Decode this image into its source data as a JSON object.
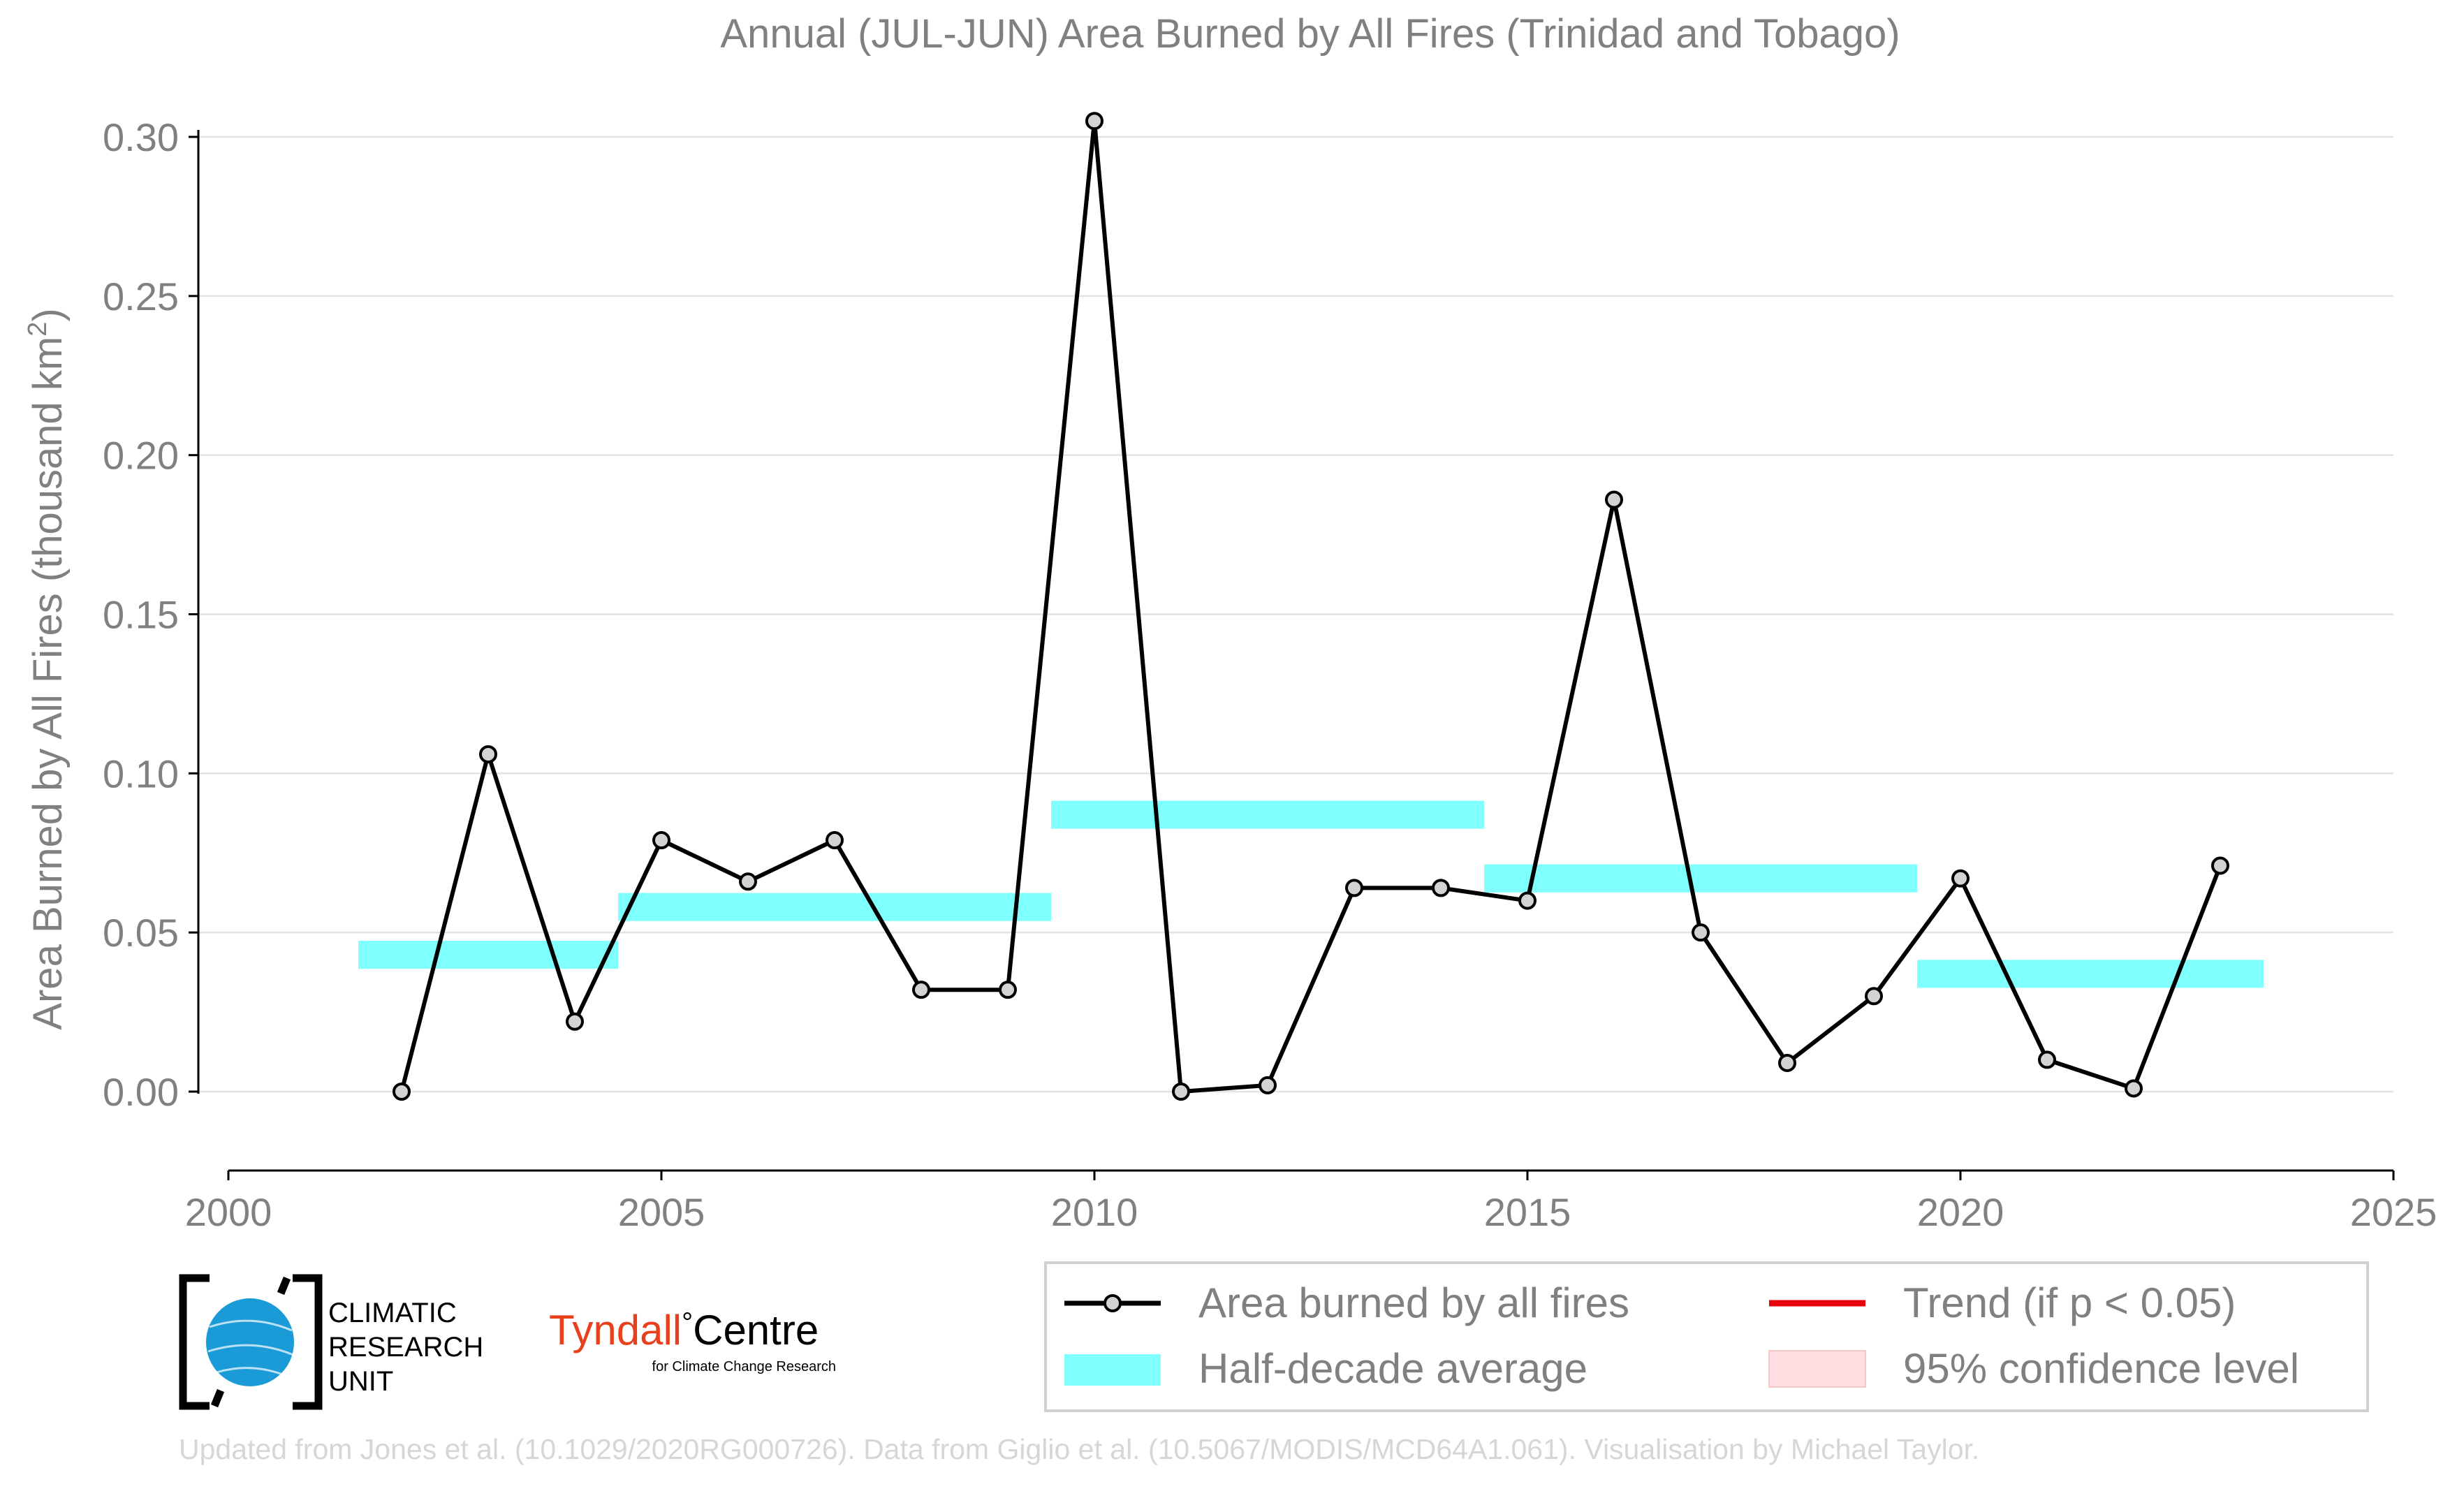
{
  "chart_data": {
    "type": "line",
    "title": "Annual (JUL-JUN) Area Burned by All Fires (Trinidad and Tobago)",
    "xlabel": "",
    "ylabel": "Area Burned by All Fires (thousand km",
    "ylabel_sup": "2",
    "ylabel_close": ")",
    "xlim": [
      2000,
      2025
    ],
    "ylim": [
      -0.025,
      0.305
    ],
    "xticks": [
      2000,
      2005,
      2010,
      2015,
      2020,
      2025
    ],
    "yticks": [
      0.0,
      0.05,
      0.1,
      0.15,
      0.2,
      0.25,
      0.3
    ],
    "ytick_labels": [
      "0.00",
      "0.05",
      "0.10",
      "0.15",
      "0.20",
      "0.25",
      "0.30"
    ],
    "grid": "horizontal",
    "legend_position": "bottom-right",
    "series": [
      {
        "name": "Area burned by all fires",
        "color": "#000000",
        "marker_fill": "#d3d3d3",
        "x": [
          2002,
          2003,
          2004,
          2005,
          2006,
          2007,
          2008,
          2009,
          2010,
          2011,
          2012,
          2013,
          2014,
          2015,
          2016,
          2017,
          2018,
          2019,
          2020,
          2021,
          2022,
          2023
        ],
        "y": [
          0.0,
          0.106,
          0.022,
          0.079,
          0.066,
          0.079,
          0.032,
          0.032,
          0.305,
          0.0,
          0.002,
          0.064,
          0.064,
          0.06,
          0.186,
          0.05,
          0.009,
          0.03,
          0.067,
          0.01,
          0.001,
          0.071
        ]
      }
    ],
    "half_decade_averages": {
      "name": "Half-decade average",
      "color": "#80ffff",
      "segments": [
        {
          "x_start": 2001.5,
          "x_end": 2004.5,
          "value": 0.043
        },
        {
          "x_start": 2004.5,
          "x_end": 2009.5,
          "value": 0.058
        },
        {
          "x_start": 2009.5,
          "x_end": 2014.5,
          "value": 0.087
        },
        {
          "x_start": 2014.5,
          "x_end": 2019.5,
          "value": 0.067
        },
        {
          "x_start": 2019.5,
          "x_end": 2023.5,
          "value": 0.037
        }
      ]
    },
    "legend": [
      {
        "key": "line",
        "label": "Area burned by all fires",
        "color": "#000000"
      },
      {
        "key": "trend",
        "label": "Trend (if p < 0.05)",
        "color": "#e8000b"
      },
      {
        "key": "half",
        "label": "Half-decade average",
        "color": "#80ffff"
      },
      {
        "key": "ci",
        "label": "95% confidence level",
        "color": "#ffdde0"
      }
    ]
  },
  "logos": {
    "cru_lines": [
      "CLIMATIC",
      "RESEARCH",
      "UNIT"
    ],
    "tyndall_name": "Tyndall",
    "tyndall_degree": "°",
    "tyndall_centre": "Centre",
    "tyndall_sub": "for Climate Change Research"
  },
  "footer": "Updated from Jones et al. (10.1029/2020RG000726). Data from Giglio et al. (10.5067/MODIS/MCD64A1.061). Visualisation by Michael Taylor."
}
